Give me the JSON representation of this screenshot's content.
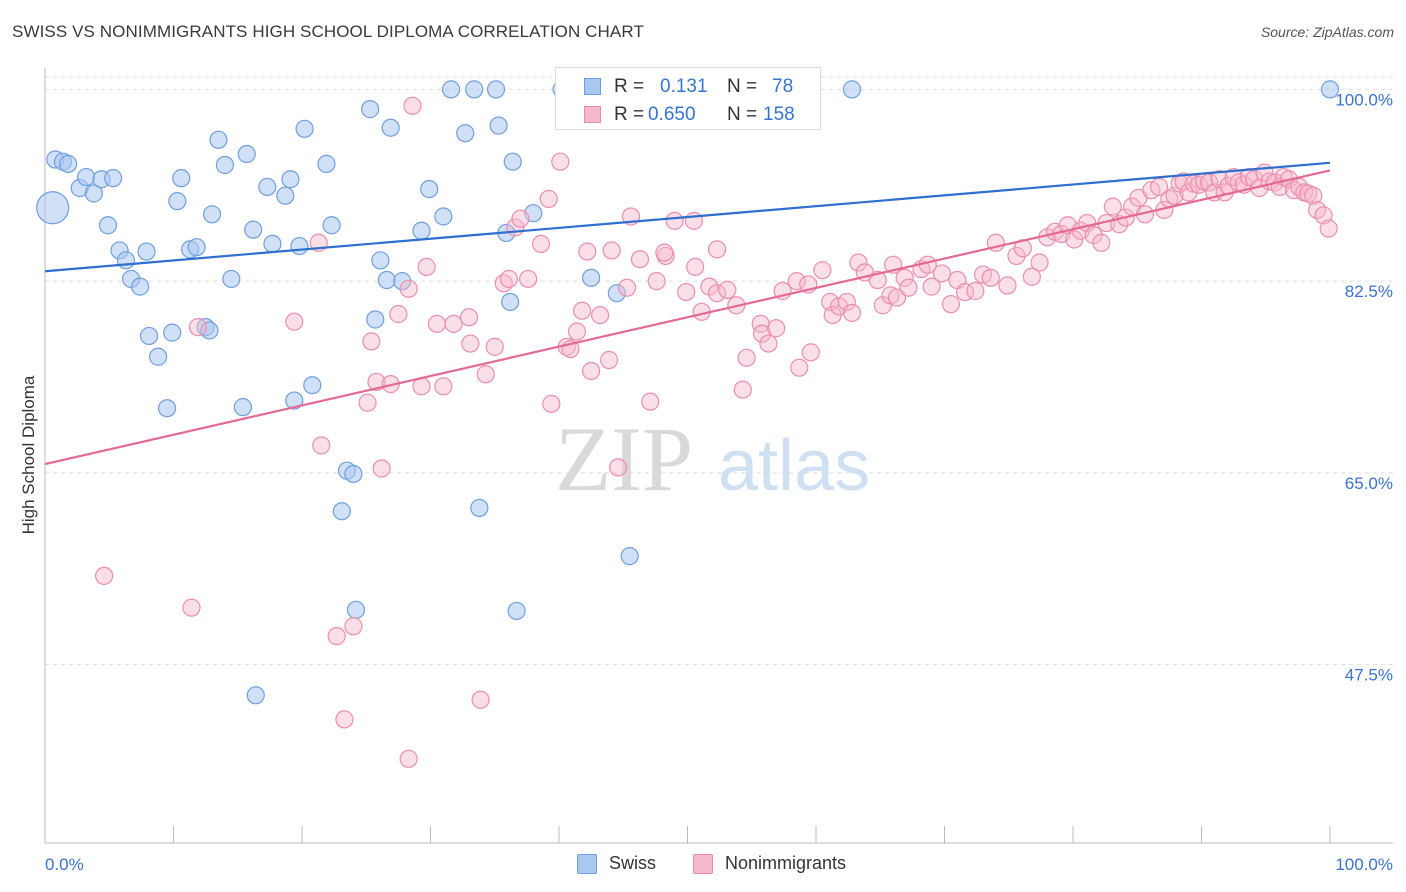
{
  "header": {
    "title": "SWISS VS NONIMMIGRANTS HIGH SCHOOL DIPLOMA CORRELATION CHART",
    "source": "Source: ZipAtlas.com"
  },
  "watermark": {
    "zip": "ZIP",
    "atlas": "atlas"
  },
  "legend_stats": {
    "r_label": "R =",
    "n_label": "N =",
    "swiss": {
      "r": "0.131",
      "n": "78"
    },
    "nonimmigrants": {
      "r": "0.650",
      "n": "158"
    }
  },
  "colors": {
    "swiss_fill": "#a9c8f0",
    "swiss_stroke": "#6f9fe0",
    "swiss_line": "#2e6fd0",
    "non_fill": "#f6b8cc",
    "non_stroke": "#ec8eab",
    "non_line": "#e46a93",
    "tick_label": "#3a72d0",
    "grid": "#dddddd"
  },
  "chart_data": {
    "type": "scatter",
    "title": "SWISS VS NONIMMIGRANTS HIGH SCHOOL DIPLOMA CORRELATION CHART",
    "xlabel": "",
    "ylabel": "High School Diploma",
    "xlim": [
      0,
      100
    ],
    "ylim": [
      33.5,
      102.5
    ],
    "x_tick_labels": [
      "0.0%",
      "100.0%"
    ],
    "y_ticks": [
      47.5,
      65.0,
      82.5,
      100.0
    ],
    "y_tick_labels": [
      "47.5%",
      "65.0%",
      "82.5%",
      "100.0%"
    ],
    "grid": true,
    "legend_position": "top-center and bottom",
    "series": [
      {
        "name": "Swiss",
        "r": 0.131,
        "n": 78,
        "trend": [
          [
            0,
            83.4
          ],
          [
            100,
            93.3
          ]
        ],
        "points": [
          [
            0.6,
            89.2
          ],
          [
            0.8,
            93.6
          ],
          [
            1.4,
            93.4
          ],
          [
            1.8,
            93.2
          ],
          [
            2.7,
            91.0
          ],
          [
            3.2,
            92.0
          ],
          [
            3.8,
            90.5
          ],
          [
            4.4,
            91.8
          ],
          [
            5.3,
            91.9
          ],
          [
            4.9,
            87.6
          ],
          [
            5.8,
            85.3
          ],
          [
            6.3,
            84.4
          ],
          [
            6.7,
            82.7
          ],
          [
            7.4,
            82.0
          ],
          [
            7.9,
            85.2
          ],
          [
            8.1,
            77.5
          ],
          [
            8.8,
            75.6
          ],
          [
            9.5,
            70.9
          ],
          [
            9.9,
            77.8
          ],
          [
            10.3,
            89.8
          ],
          [
            10.6,
            91.9
          ],
          [
            11.3,
            85.4
          ],
          [
            11.8,
            85.6
          ],
          [
            12.5,
            78.3
          ],
          [
            12.8,
            78.0
          ],
          [
            13.0,
            88.6
          ],
          [
            13.5,
            95.4
          ],
          [
            14.0,
            93.1
          ],
          [
            14.5,
            82.7
          ],
          [
            15.4,
            71.0
          ],
          [
            15.7,
            94.1
          ],
          [
            16.2,
            87.2
          ],
          [
            17.3,
            91.1
          ],
          [
            17.7,
            85.9
          ],
          [
            18.7,
            90.3
          ],
          [
            19.1,
            91.8
          ],
          [
            19.4,
            71.6
          ],
          [
            19.8,
            85.7
          ],
          [
            20.2,
            96.4
          ],
          [
            20.8,
            73.0
          ],
          [
            21.9,
            93.2
          ],
          [
            22.3,
            87.6
          ],
          [
            23.1,
            61.5
          ],
          [
            23.5,
            65.2
          ],
          [
            24.0,
            64.9
          ],
          [
            24.2,
            52.5
          ],
          [
            25.3,
            98.2
          ],
          [
            25.7,
            79.0
          ],
          [
            26.1,
            84.4
          ],
          [
            26.6,
            82.6
          ],
          [
            26.9,
            96.5
          ],
          [
            27.8,
            82.5
          ],
          [
            29.9,
            90.9
          ],
          [
            29.3,
            87.1
          ],
          [
            31.0,
            88.4
          ],
          [
            31.6,
            100.0
          ],
          [
            32.7,
            96.0
          ],
          [
            33.4,
            100.0
          ],
          [
            33.8,
            61.8
          ],
          [
            35.1,
            100.0
          ],
          [
            35.3,
            96.7
          ],
          [
            35.9,
            86.9
          ],
          [
            36.2,
            80.6
          ],
          [
            36.4,
            93.4
          ],
          [
            36.7,
            52.4
          ],
          [
            38.0,
            88.7
          ],
          [
            40.2,
            100.0
          ],
          [
            41.6,
            100.0
          ],
          [
            42.5,
            82.8
          ],
          [
            44.5,
            81.4
          ],
          [
            45.5,
            57.4
          ],
          [
            46.5,
            100.0
          ],
          [
            48.4,
            100.0
          ],
          [
            52.3,
            100.0
          ],
          [
            58.6,
            100.0
          ],
          [
            62.8,
            100.0
          ],
          [
            100.0,
            100.0
          ],
          [
            16.4,
            44.7
          ]
        ],
        "sizes": {
          "0": 40
        }
      },
      {
        "name": "Nonimmigrants",
        "r": 0.65,
        "n": 158,
        "trend": [
          [
            0,
            65.8
          ],
          [
            100,
            92.6
          ]
        ],
        "points": [
          [
            4.6,
            55.6
          ],
          [
            11.4,
            52.7
          ],
          [
            11.9,
            78.3
          ],
          [
            19.4,
            78.8
          ],
          [
            21.3,
            86.0
          ],
          [
            21.5,
            67.5
          ],
          [
            22.7,
            50.1
          ],
          [
            23.3,
            42.5
          ],
          [
            24.0,
            51.0
          ],
          [
            25.1,
            71.4
          ],
          [
            25.4,
            77.0
          ],
          [
            25.8,
            73.3
          ],
          [
            26.2,
            65.4
          ],
          [
            26.9,
            73.1
          ],
          [
            27.5,
            79.5
          ],
          [
            28.3,
            38.9
          ],
          [
            28.6,
            98.5
          ],
          [
            28.3,
            81.8
          ],
          [
            29.3,
            72.9
          ],
          [
            29.7,
            83.8
          ],
          [
            30.5,
            78.6
          ],
          [
            31.0,
            72.9
          ],
          [
            31.8,
            78.6
          ],
          [
            33.0,
            79.2
          ],
          [
            33.1,
            76.8
          ],
          [
            33.9,
            44.3
          ],
          [
            34.3,
            74.0
          ],
          [
            35.0,
            76.5
          ],
          [
            35.7,
            82.3
          ],
          [
            36.1,
            82.7
          ],
          [
            36.6,
            87.4
          ],
          [
            37.0,
            88.2
          ],
          [
            37.6,
            82.7
          ],
          [
            38.6,
            85.9
          ],
          [
            39.4,
            71.3
          ],
          [
            39.2,
            90.0
          ],
          [
            40.1,
            93.4
          ],
          [
            40.6,
            76.5
          ],
          [
            40.9,
            76.3
          ],
          [
            41.4,
            77.9
          ],
          [
            41.8,
            79.8
          ],
          [
            42.2,
            85.2
          ],
          [
            42.5,
            74.3
          ],
          [
            43.2,
            79.4
          ],
          [
            43.9,
            75.3
          ],
          [
            44.1,
            85.3
          ],
          [
            44.6,
            65.5
          ],
          [
            45.3,
            81.9
          ],
          [
            45.6,
            88.4
          ],
          [
            46.3,
            84.5
          ],
          [
            47.1,
            71.5
          ],
          [
            47.6,
            82.5
          ],
          [
            48.3,
            84.8
          ],
          [
            49.0,
            88.0
          ],
          [
            49.9,
            81.5
          ],
          [
            50.6,
            83.8
          ],
          [
            50.5,
            88.0
          ],
          [
            51.1,
            79.7
          ],
          [
            51.7,
            82.0
          ],
          [
            52.3,
            81.4
          ],
          [
            53.1,
            81.7
          ],
          [
            53.8,
            80.3
          ],
          [
            54.3,
            72.6
          ],
          [
            54.6,
            75.5
          ],
          [
            55.7,
            78.6
          ],
          [
            55.8,
            77.7
          ],
          [
            56.3,
            76.8
          ],
          [
            56.9,
            78.2
          ],
          [
            57.4,
            81.6
          ],
          [
            58.5,
            82.5
          ],
          [
            58.7,
            74.6
          ],
          [
            59.4,
            82.2
          ],
          [
            59.6,
            76.0
          ],
          [
            60.5,
            83.5
          ],
          [
            61.1,
            80.6
          ],
          [
            61.3,
            79.4
          ],
          [
            61.8,
            80.2
          ],
          [
            62.4,
            80.6
          ],
          [
            62.8,
            79.6
          ],
          [
            63.3,
            84.2
          ],
          [
            63.8,
            83.3
          ],
          [
            64.8,
            82.6
          ],
          [
            65.2,
            80.3
          ],
          [
            65.8,
            81.2
          ],
          [
            66.3,
            81.0
          ],
          [
            66.9,
            82.8
          ],
          [
            67.2,
            81.9
          ],
          [
            68.2,
            83.6
          ],
          [
            68.7,
            84.0
          ],
          [
            69.0,
            82.0
          ],
          [
            69.8,
            83.2
          ],
          [
            70.5,
            80.4
          ],
          [
            71.0,
            82.6
          ],
          [
            71.6,
            81.5
          ],
          [
            72.4,
            81.6
          ],
          [
            73.0,
            83.1
          ],
          [
            73.6,
            82.8
          ],
          [
            74.0,
            86.0
          ],
          [
            74.9,
            82.1
          ],
          [
            75.6,
            84.8
          ],
          [
            76.1,
            85.5
          ],
          [
            76.8,
            82.9
          ],
          [
            77.4,
            84.2
          ],
          [
            78.0,
            86.5
          ],
          [
            78.6,
            87.0
          ],
          [
            79.1,
            86.8
          ],
          [
            79.6,
            87.6
          ],
          [
            80.1,
            86.3
          ],
          [
            80.6,
            87.1
          ],
          [
            81.1,
            87.8
          ],
          [
            81.6,
            86.7
          ],
          [
            82.2,
            86.0
          ],
          [
            82.6,
            87.8
          ],
          [
            83.1,
            89.3
          ],
          [
            83.6,
            87.7
          ],
          [
            84.1,
            88.3
          ],
          [
            84.6,
            89.3
          ],
          [
            85.1,
            90.1
          ],
          [
            85.6,
            88.6
          ],
          [
            86.1,
            90.8
          ],
          [
            86.7,
            91.1
          ],
          [
            87.1,
            89.0
          ],
          [
            87.5,
            90.0
          ],
          [
            87.9,
            90.3
          ],
          [
            88.3,
            91.4
          ],
          [
            88.6,
            91.6
          ],
          [
            89.0,
            90.6
          ],
          [
            89.4,
            91.4
          ],
          [
            89.8,
            91.3
          ],
          [
            90.2,
            91.6
          ],
          [
            90.6,
            91.5
          ],
          [
            91.0,
            90.6
          ],
          [
            91.4,
            91.8
          ],
          [
            91.8,
            90.6
          ],
          [
            92.1,
            91.2
          ],
          [
            92.5,
            92.0
          ],
          [
            92.9,
            91.5
          ],
          [
            93.3,
            91.3
          ],
          [
            93.7,
            92.0
          ],
          [
            94.1,
            91.8
          ],
          [
            94.5,
            91.0
          ],
          [
            94.9,
            92.4
          ],
          [
            95.3,
            91.6
          ],
          [
            95.7,
            91.5
          ],
          [
            96.1,
            91.1
          ],
          [
            96.4,
            92.0
          ],
          [
            96.8,
            91.8
          ],
          [
            97.2,
            90.8
          ],
          [
            97.6,
            91.1
          ],
          [
            98.0,
            90.6
          ],
          [
            98.3,
            90.5
          ],
          [
            98.7,
            90.3
          ],
          [
            99.0,
            89.0
          ],
          [
            99.5,
            88.5
          ],
          [
            99.9,
            87.3
          ],
          [
            66.0,
            84.0
          ],
          [
            52.3,
            85.4
          ],
          [
            48.2,
            85.1
          ]
        ]
      }
    ]
  },
  "bottom_legend": {
    "swiss": "Swiss",
    "nonimmigrants": "Nonimmigrants"
  }
}
